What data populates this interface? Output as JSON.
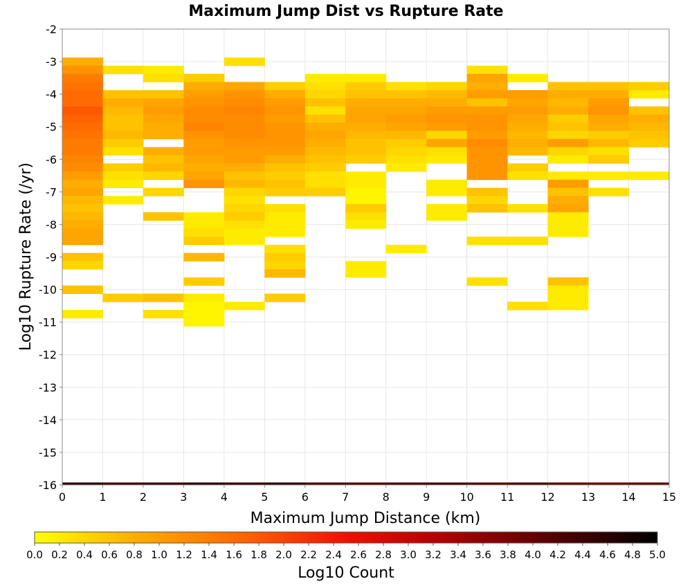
{
  "chart_data": {
    "type": "heatmap",
    "title": "Maximum Jump Dist vs Rupture Rate",
    "xlabel": "Maximum Jump Distance (km)",
    "ylabel": "Log10 Rupture Rate (/yr)",
    "xlim": [
      0,
      15
    ],
    "ylim": [
      -16,
      -2
    ],
    "x_ticks": [
      "0",
      "1",
      "2",
      "3",
      "4",
      "5",
      "6",
      "7",
      "8",
      "9",
      "10",
      "11",
      "12",
      "13",
      "14",
      "15"
    ],
    "y_ticks": [
      "-2",
      "-3",
      "-4",
      "-5",
      "-6",
      "-7",
      "-8",
      "-9",
      "-10",
      "-11",
      "-12",
      "-13",
      "-14",
      "-15",
      "-16"
    ],
    "grid": true,
    "bin_width_x": 1,
    "bin_height_y": 0.25,
    "colorbar": {
      "label": "Log10 Count",
      "min": 0.0,
      "max": 5.0,
      "ticks": [
        "0.0",
        "0.2",
        "0.4",
        "0.6",
        "0.8",
        "1.0",
        "1.2",
        "1.4",
        "1.6",
        "1.8",
        "2.0",
        "2.2",
        "2.4",
        "2.6",
        "2.8",
        "3.0",
        "3.2",
        "3.4",
        "3.6",
        "3.8",
        "4.0",
        "4.2",
        "4.4",
        "4.6",
        "4.8",
        "5.0"
      ],
      "stops": [
        "#ffff00",
        "#ffaa00",
        "#ff6600",
        "#ee1100",
        "#aa0000",
        "#550000",
        "#000000"
      ]
    },
    "cells": [
      [
        0,
        -3.0,
        0.8
      ],
      [
        0,
        -3.25,
        1.1
      ],
      [
        0,
        -3.5,
        1.4
      ],
      [
        0,
        -3.75,
        1.5
      ],
      [
        0,
        -4.0,
        1.6
      ],
      [
        0,
        -4.25,
        1.6
      ],
      [
        0,
        -4.5,
        1.8
      ],
      [
        0,
        -4.75,
        1.7
      ],
      [
        0,
        -5.0,
        1.6
      ],
      [
        0,
        -5.25,
        1.5
      ],
      [
        0,
        -5.5,
        1.4
      ],
      [
        0,
        -5.75,
        1.4
      ],
      [
        0,
        -6.0,
        1.3
      ],
      [
        0,
        -6.25,
        1.2
      ],
      [
        0,
        -6.5,
        1.0
      ],
      [
        0,
        -6.75,
        0.8
      ],
      [
        0,
        -7.0,
        0.9
      ],
      [
        0,
        -7.25,
        0.7
      ],
      [
        0,
        -7.5,
        0.6
      ],
      [
        0,
        -7.75,
        0.7
      ],
      [
        0,
        -8.0,
        0.8
      ],
      [
        0,
        -8.25,
        0.9
      ],
      [
        0,
        -8.5,
        0.9
      ],
      [
        0,
        -9.0,
        0.6
      ],
      [
        0,
        -9.25,
        0.4
      ],
      [
        0,
        -10.0,
        0.6
      ],
      [
        0,
        -10.75,
        0.2
      ],
      [
        1,
        -3.25,
        0.3
      ],
      [
        1,
        -4.0,
        0.6
      ],
      [
        1,
        -4.25,
        0.8
      ],
      [
        1,
        -4.5,
        0.7
      ],
      [
        1,
        -4.75,
        0.6
      ],
      [
        1,
        -5.0,
        0.6
      ],
      [
        1,
        -5.25,
        0.7
      ],
      [
        1,
        -5.5,
        0.5
      ],
      [
        1,
        -5.75,
        0.3
      ],
      [
        1,
        -6.25,
        0.5
      ],
      [
        1,
        -6.5,
        0.3
      ],
      [
        1,
        -6.75,
        0.2
      ],
      [
        1,
        -7.25,
        0.2
      ],
      [
        1,
        -10.25,
        0.5
      ],
      [
        2,
        -3.25,
        0.2
      ],
      [
        2,
        -3.5,
        0.3
      ],
      [
        2,
        -4.0,
        0.6
      ],
      [
        2,
        -4.25,
        0.9
      ],
      [
        2,
        -4.5,
        1.0
      ],
      [
        2,
        -4.75,
        0.9
      ],
      [
        2,
        -5.0,
        0.8
      ],
      [
        2,
        -5.25,
        0.8
      ],
      [
        2,
        -5.75,
        0.8
      ],
      [
        2,
        -6.0,
        0.6
      ],
      [
        2,
        -6.25,
        0.7
      ],
      [
        2,
        -6.5,
        0.4
      ],
      [
        2,
        -7.0,
        0.4
      ],
      [
        2,
        -7.75,
        0.6
      ],
      [
        2,
        -10.25,
        0.6
      ],
      [
        2,
        -10.75,
        0.3
      ],
      [
        3,
        -3.5,
        0.5
      ],
      [
        3,
        -3.75,
        0.8
      ],
      [
        3,
        -4.0,
        1.0
      ],
      [
        3,
        -4.25,
        1.1
      ],
      [
        3,
        -4.5,
        1.2
      ],
      [
        3,
        -4.75,
        1.2
      ],
      [
        3,
        -5.0,
        1.3
      ],
      [
        3,
        -5.25,
        1.1
      ],
      [
        3,
        -5.5,
        1.0
      ],
      [
        3,
        -5.75,
        1.0
      ],
      [
        3,
        -6.0,
        0.9
      ],
      [
        3,
        -6.25,
        0.8
      ],
      [
        3,
        -6.5,
        0.9
      ],
      [
        3,
        -6.75,
        1.1
      ],
      [
        3,
        -7.75,
        0.2
      ],
      [
        3,
        -8.0,
        0.2
      ],
      [
        3,
        -8.25,
        0.3
      ],
      [
        3,
        -8.5,
        0.5
      ],
      [
        3,
        -9.0,
        0.7
      ],
      [
        3,
        -9.75,
        0.5
      ],
      [
        3,
        -10.25,
        0.2
      ],
      [
        3,
        -10.5,
        0.1
      ],
      [
        3,
        -10.75,
        0.1
      ],
      [
        3,
        -11.0,
        0.1
      ],
      [
        4,
        -3.0,
        0.3
      ],
      [
        4,
        -3.75,
        0.9
      ],
      [
        4,
        -4.0,
        1.1
      ],
      [
        4,
        -4.25,
        1.2
      ],
      [
        4,
        -4.5,
        1.3
      ],
      [
        4,
        -4.75,
        1.2
      ],
      [
        4,
        -5.0,
        1.2
      ],
      [
        4,
        -5.25,
        1.2
      ],
      [
        4,
        -5.5,
        1.1
      ],
      [
        4,
        -5.75,
        1.0
      ],
      [
        4,
        -6.0,
        1.0
      ],
      [
        4,
        -6.25,
        0.8
      ],
      [
        4,
        -6.5,
        0.6
      ],
      [
        4,
        -6.75,
        0.7
      ],
      [
        4,
        -7.0,
        0.4
      ],
      [
        4,
        -7.25,
        0.3
      ],
      [
        4,
        -7.5,
        0.4
      ],
      [
        4,
        -7.75,
        0.5
      ],
      [
        4,
        -8.0,
        0.3
      ],
      [
        4,
        -8.25,
        0.2
      ],
      [
        4,
        -8.5,
        0.2
      ],
      [
        4,
        -10.5,
        0.2
      ],
      [
        5,
        -3.75,
        0.5
      ],
      [
        5,
        -4.0,
        0.8
      ],
      [
        5,
        -4.25,
        1.0
      ],
      [
        5,
        -4.5,
        1.1
      ],
      [
        5,
        -4.75,
        1.0
      ],
      [
        5,
        -5.0,
        1.1
      ],
      [
        5,
        -5.25,
        1.1
      ],
      [
        5,
        -5.5,
        1.1
      ],
      [
        5,
        -5.75,
        1.0
      ],
      [
        5,
        -6.0,
        0.8
      ],
      [
        5,
        -6.25,
        0.6
      ],
      [
        5,
        -6.5,
        0.5
      ],
      [
        5,
        -6.75,
        0.6
      ],
      [
        5,
        -7.0,
        0.5
      ],
      [
        5,
        -7.5,
        0.3
      ],
      [
        5,
        -7.75,
        0.2
      ],
      [
        5,
        -8.0,
        0.2
      ],
      [
        5,
        -8.25,
        0.2
      ],
      [
        5,
        -8.75,
        0.3
      ],
      [
        5,
        -9.0,
        0.5
      ],
      [
        5,
        -9.25,
        0.4
      ],
      [
        5,
        -9.5,
        0.7
      ],
      [
        5,
        -10.25,
        0.5
      ],
      [
        6,
        -3.5,
        0.2
      ],
      [
        6,
        -3.75,
        0.3
      ],
      [
        6,
        -4.0,
        0.4
      ],
      [
        6,
        -4.25,
        0.6
      ],
      [
        6,
        -4.5,
        0.3
      ],
      [
        6,
        -4.75,
        0.6
      ],
      [
        6,
        -5.0,
        0.8
      ],
      [
        6,
        -5.25,
        0.9
      ],
      [
        6,
        -5.5,
        0.8
      ],
      [
        6,
        -5.75,
        0.7
      ],
      [
        6,
        -6.0,
        0.6
      ],
      [
        6,
        -6.25,
        0.5
      ],
      [
        6,
        -6.5,
        0.3
      ],
      [
        6,
        -6.75,
        0.3
      ],
      [
        6,
        -7.0,
        0.5
      ],
      [
        7,
        -3.5,
        0.2
      ],
      [
        7,
        -3.75,
        0.5
      ],
      [
        7,
        -4.0,
        0.6
      ],
      [
        7,
        -4.25,
        0.8
      ],
      [
        7,
        -4.5,
        0.9
      ],
      [
        7,
        -4.75,
        0.9
      ],
      [
        7,
        -5.0,
        0.8
      ],
      [
        7,
        -5.25,
        0.7
      ],
      [
        7,
        -5.5,
        0.6
      ],
      [
        7,
        -5.75,
        0.6
      ],
      [
        7,
        -6.0,
        0.5
      ],
      [
        7,
        -6.5,
        0.2
      ],
      [
        7,
        -6.75,
        0.2
      ],
      [
        7,
        -7.0,
        0.1
      ],
      [
        7,
        -7.25,
        0.1
      ],
      [
        7,
        -7.5,
        0.5
      ],
      [
        7,
        -7.75,
        0.3
      ],
      [
        7,
        -8.0,
        0.2
      ],
      [
        7,
        -9.25,
        0.2
      ],
      [
        7,
        -9.5,
        0.2
      ],
      [
        8,
        -3.75,
        0.3
      ],
      [
        8,
        -4.0,
        0.6
      ],
      [
        8,
        -4.25,
        0.8
      ],
      [
        8,
        -4.5,
        0.9
      ],
      [
        8,
        -4.75,
        1.0
      ],
      [
        8,
        -5.0,
        0.9
      ],
      [
        8,
        -5.25,
        0.7
      ],
      [
        8,
        -5.5,
        0.5
      ],
      [
        8,
        -5.75,
        0.4
      ],
      [
        8,
        -6.0,
        0.3
      ],
      [
        8,
        -6.25,
        0.2
      ],
      [
        8,
        -8.75,
        0.2
      ],
      [
        9,
        -3.75,
        0.4
      ],
      [
        9,
        -4.0,
        0.7
      ],
      [
        9,
        -4.25,
        0.8
      ],
      [
        9,
        -4.5,
        1.0
      ],
      [
        9,
        -4.75,
        1.1
      ],
      [
        9,
        -5.0,
        1.0
      ],
      [
        9,
        -5.25,
        0.4
      ],
      [
        9,
        -5.5,
        0.9
      ],
      [
        9,
        -5.75,
        0.3
      ],
      [
        9,
        -6.0,
        0.2
      ],
      [
        9,
        -6.75,
        0.2
      ],
      [
        9,
        -7.0,
        0.2
      ],
      [
        9,
        -7.5,
        0.2
      ],
      [
        9,
        -7.75,
        0.2
      ],
      [
        10,
        -3.25,
        0.3
      ],
      [
        10,
        -3.5,
        0.9
      ],
      [
        10,
        -3.75,
        0.8
      ],
      [
        10,
        -4.0,
        1.0
      ],
      [
        10,
        -4.25,
        0.6
      ],
      [
        10,
        -4.5,
        1.0
      ],
      [
        10,
        -4.75,
        1.1
      ],
      [
        10,
        -5.0,
        1.1
      ],
      [
        10,
        -5.25,
        1.0
      ],
      [
        10,
        -5.5,
        1.2
      ],
      [
        10,
        -5.75,
        1.1
      ],
      [
        10,
        -6.0,
        1.1
      ],
      [
        10,
        -6.25,
        1.1
      ],
      [
        10,
        -6.5,
        1.1
      ],
      [
        10,
        -7.0,
        0.6
      ],
      [
        10,
        -7.25,
        0.4
      ],
      [
        10,
        -7.5,
        0.6
      ],
      [
        10,
        -8.5,
        0.3
      ],
      [
        10,
        -9.75,
        0.3
      ],
      [
        11,
        -3.5,
        0.2
      ],
      [
        11,
        -4.0,
        1.0
      ],
      [
        11,
        -4.25,
        0.9
      ],
      [
        11,
        -4.5,
        1.0
      ],
      [
        11,
        -4.75,
        0.9
      ],
      [
        11,
        -5.0,
        0.8
      ],
      [
        11,
        -5.25,
        0.7
      ],
      [
        11,
        -5.5,
        0.8
      ],
      [
        11,
        -5.75,
        0.7
      ],
      [
        11,
        -6.25,
        0.5
      ],
      [
        11,
        -6.5,
        0.3
      ],
      [
        11,
        -7.5,
        0.3
      ],
      [
        11,
        -8.5,
        0.3
      ],
      [
        11,
        -10.5,
        0.3
      ],
      [
        12,
        -3.75,
        0.6
      ],
      [
        12,
        -4.0,
        0.8
      ],
      [
        12,
        -4.25,
        0.7
      ],
      [
        12,
        -4.5,
        0.8
      ],
      [
        12,
        -4.75,
        0.5
      ],
      [
        12,
        -5.0,
        0.6
      ],
      [
        12,
        -5.25,
        0.4
      ],
      [
        12,
        -5.5,
        1.0
      ],
      [
        12,
        -5.75,
        0.4
      ],
      [
        12,
        -6.0,
        0.2
      ],
      [
        12,
        -6.5,
        0.2
      ],
      [
        12,
        -6.75,
        1.0
      ],
      [
        12,
        -7.0,
        0.6
      ],
      [
        12,
        -7.25,
        0.8
      ],
      [
        12,
        -7.5,
        0.9
      ],
      [
        12,
        -7.75,
        0.2
      ],
      [
        12,
        -8.0,
        0.2
      ],
      [
        12,
        -8.25,
        0.2
      ],
      [
        12,
        -9.75,
        0.6
      ],
      [
        12,
        -10.0,
        0.2
      ],
      [
        12,
        -10.25,
        0.2
      ],
      [
        12,
        -10.5,
        0.2
      ],
      [
        13,
        -3.75,
        0.6
      ],
      [
        13,
        -4.0,
        0.8
      ],
      [
        13,
        -4.25,
        1.0
      ],
      [
        13,
        -4.5,
        1.1
      ],
      [
        13,
        -4.75,
        0.9
      ],
      [
        13,
        -5.0,
        0.8
      ],
      [
        13,
        -5.25,
        0.5
      ],
      [
        13,
        -5.5,
        0.7
      ],
      [
        13,
        -5.75,
        0.3
      ],
      [
        13,
        -6.0,
        0.5
      ],
      [
        13,
        -6.5,
        0.2
      ],
      [
        13,
        -7.0,
        0.3
      ],
      [
        14,
        -3.75,
        0.5
      ],
      [
        14,
        -4.0,
        0.2
      ],
      [
        14,
        -4.5,
        0.6
      ],
      [
        14,
        -4.75,
        0.8
      ],
      [
        14,
        -5.0,
        0.7
      ],
      [
        14,
        -5.25,
        0.6
      ],
      [
        14,
        -5.5,
        0.5
      ],
      [
        14,
        -6.5,
        0.2
      ]
    ],
    "bottom_row": {
      "y": -16,
      "height": 0.15,
      "values": [
        4.6,
        4.4,
        4.5,
        4.6,
        4.5,
        4.6,
        4.3,
        4.2,
        4.3,
        4.4,
        4.2,
        4.3,
        4.1,
        4.0,
        4.1
      ]
    }
  }
}
